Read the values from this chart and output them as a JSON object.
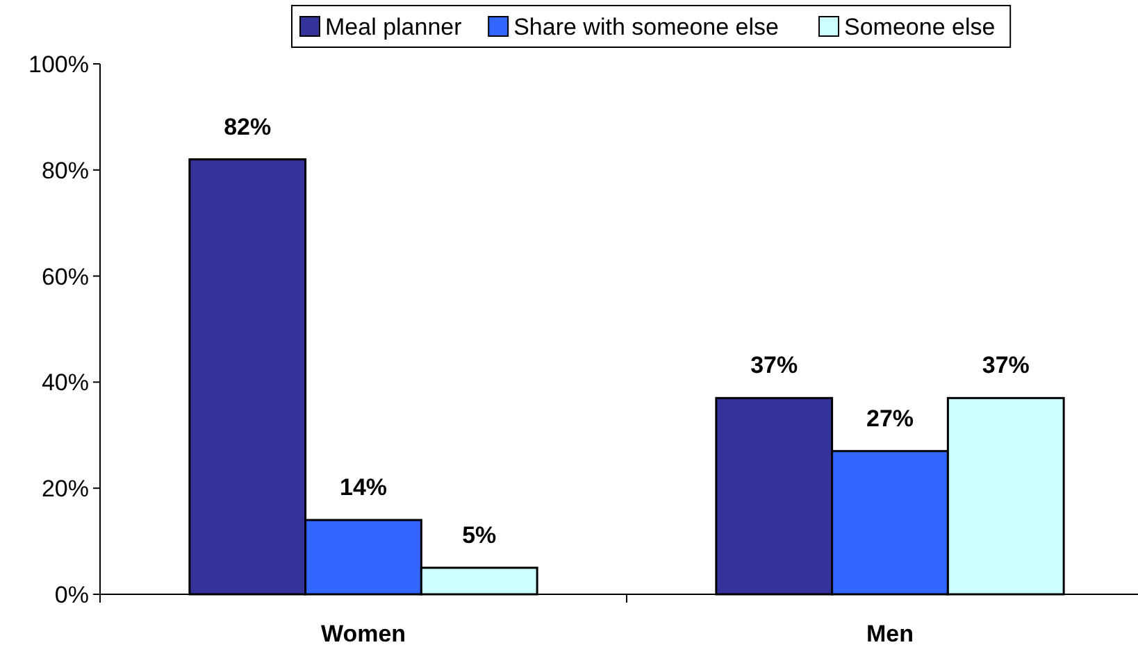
{
  "chart_data": {
    "type": "bar",
    "categories": [
      "Women",
      "Men"
    ],
    "series": [
      {
        "name": "Meal planner",
        "color": "#333399",
        "values": [
          82,
          37
        ],
        "value_labels": [
          "82%",
          "37%"
        ]
      },
      {
        "name": "Share with someone else",
        "color": "#3366ff",
        "values": [
          14,
          27
        ],
        "value_labels": [
          "14%",
          "27%"
        ]
      },
      {
        "name": "Someone else",
        "color": "#ccffff",
        "values": [
          5,
          37
        ],
        "value_labels": [
          "5%",
          "37%"
        ]
      }
    ],
    "ylim": [
      0,
      100
    ],
    "yticks": [
      {
        "value": 0,
        "label": "0%"
      },
      {
        "value": 20,
        "label": "20%"
      },
      {
        "value": 40,
        "label": "40%"
      },
      {
        "value": 60,
        "label": "60%"
      },
      {
        "value": 80,
        "label": "80%"
      },
      {
        "value": 100,
        "label": "100%"
      }
    ],
    "grid": false,
    "legend": "top"
  }
}
